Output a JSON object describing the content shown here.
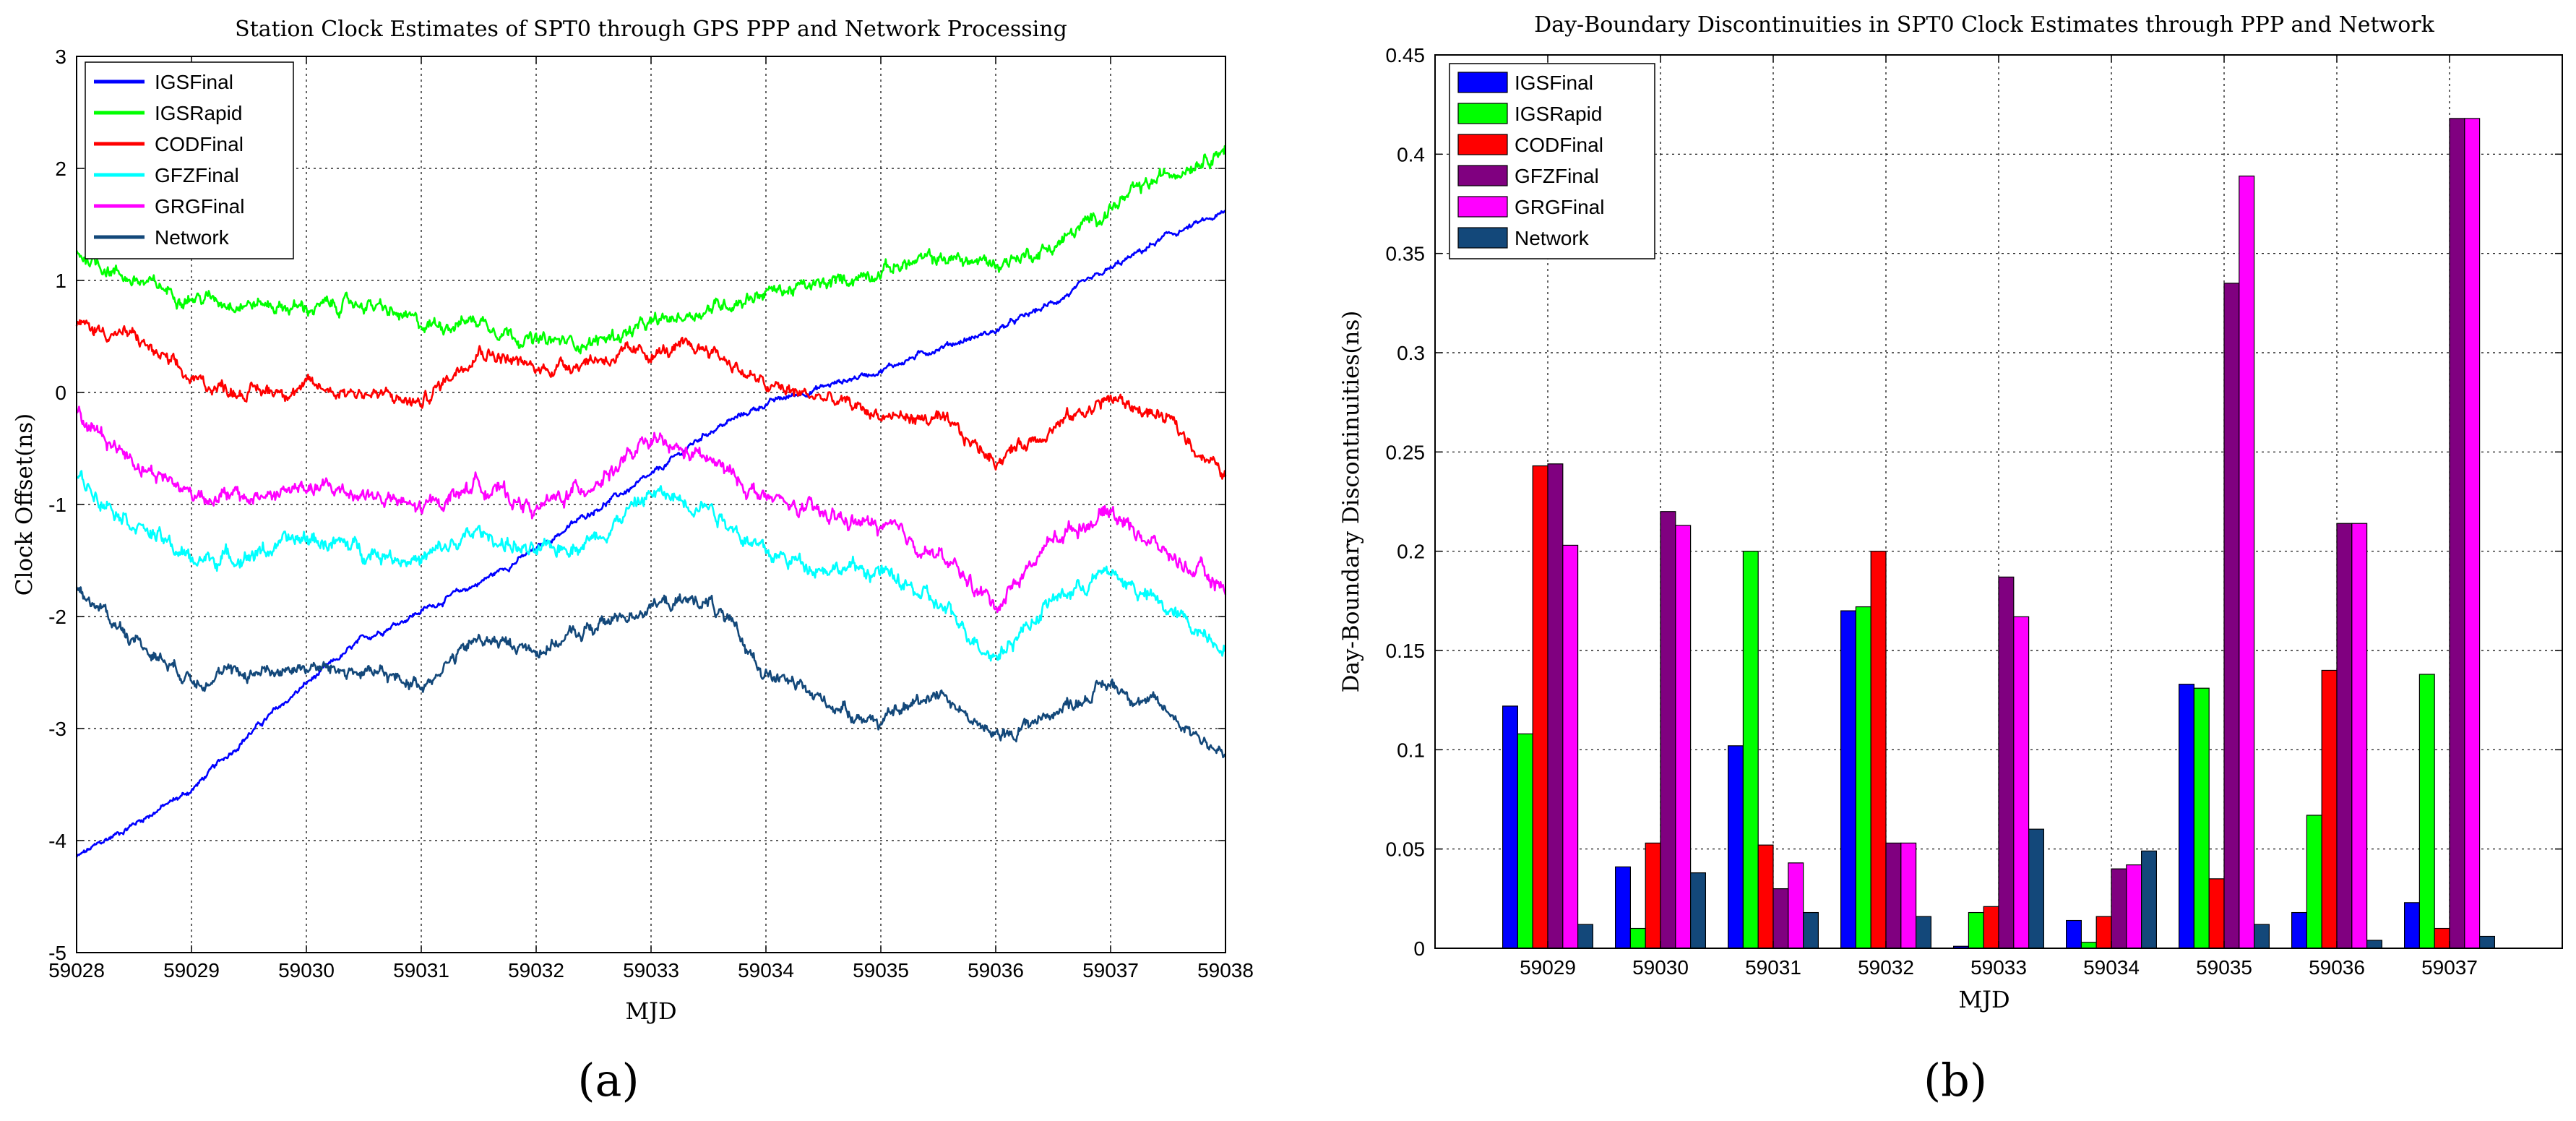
{
  "chart_data": [
    {
      "type": "line",
      "panel_label": "(a)",
      "title": "Station Clock Estimates of SPT0 through GPS PPP and Network Processing",
      "xlabel": "MJD",
      "ylabel": "Clock Offset(ns)",
      "xlim": [
        59028,
        59038
      ],
      "ylim": [
        -5,
        3
      ],
      "xticks": [
        59028,
        59029,
        59030,
        59031,
        59032,
        59033,
        59034,
        59035,
        59036,
        59037,
        59038
      ],
      "yticks": [
        -5,
        -4,
        -3,
        -2,
        -1,
        0,
        1,
        2,
        3
      ],
      "grid": true,
      "legend_position": "top-left",
      "x": [
        59028,
        59028.5,
        59029,
        59029.5,
        59030,
        59030.5,
        59031,
        59031.5,
        59032,
        59032.5,
        59033,
        59033.5,
        59034,
        59034.5,
        59035,
        59035.5,
        59036,
        59036.5,
        59037,
        59037.5,
        59038
      ],
      "series": [
        {
          "name": "IGSFinal",
          "color": "#0000ff",
          "noise": 0.03,
          "values": [
            -4.15,
            -3.85,
            -3.55,
            -3.05,
            -2.6,
            -2.2,
            -1.95,
            -1.7,
            -1.4,
            -1.05,
            -0.75,
            -0.35,
            -0.1,
            0.05,
            0.2,
            0.4,
            0.55,
            0.8,
            1.1,
            1.4,
            1.6
          ]
        },
        {
          "name": "IGSRapid",
          "color": "#00ff00",
          "noise": 0.07,
          "values": [
            1.25,
            1.0,
            0.85,
            0.8,
            0.75,
            0.8,
            0.6,
            0.65,
            0.45,
            0.45,
            0.6,
            0.75,
            0.9,
            0.95,
            1.1,
            1.2,
            1.15,
            1.3,
            1.65,
            1.95,
            2.2
          ]
        },
        {
          "name": "CODFinal",
          "color": "#ff0000",
          "noise": 0.07,
          "values": [
            0.6,
            0.5,
            0.1,
            0.0,
            0.05,
            0.0,
            -0.1,
            0.4,
            0.2,
            0.3,
            0.35,
            0.4,
            0.05,
            -0.05,
            -0.2,
            -0.25,
            -0.6,
            -0.3,
            -0.05,
            -0.25,
            -0.75
          ]
        },
        {
          "name": "GFZFinal",
          "color": "#00ffff",
          "noise": 0.08,
          "values": [
            -0.75,
            -1.15,
            -1.5,
            -1.45,
            -1.3,
            -1.4,
            -1.5,
            -1.25,
            -1.45,
            -1.3,
            -0.9,
            -1.0,
            -1.45,
            -1.55,
            -1.6,
            -1.9,
            -2.35,
            -1.85,
            -1.6,
            -1.95,
            -2.25
          ]
        },
        {
          "name": "GRGFinal",
          "color": "#ff00ff",
          "noise": 0.08,
          "values": [
            -0.2,
            -0.6,
            -0.9,
            -0.95,
            -0.85,
            -0.9,
            -1.05,
            -0.8,
            -1.05,
            -0.8,
            -0.45,
            -0.6,
            -0.95,
            -1.1,
            -1.2,
            -1.45,
            -1.9,
            -1.3,
            -1.05,
            -1.45,
            -1.75
          ]
        },
        {
          "name": "Network",
          "color": "#13487a",
          "noise": 0.07,
          "values": [
            -1.75,
            -2.2,
            -2.55,
            -2.5,
            -2.45,
            -2.5,
            -2.6,
            -2.2,
            -2.3,
            -2.1,
            -1.9,
            -1.85,
            -2.5,
            -2.75,
            -2.95,
            -2.65,
            -3.1,
            -2.85,
            -2.6,
            -2.85,
            -3.25
          ]
        }
      ]
    },
    {
      "type": "bar",
      "panel_label": "(b)",
      "title": "Day-Boundary Discontinuities in SPT0 Clock Estimates through PPP and Network",
      "xlabel": "MJD",
      "ylabel": "Day-Boundary Discontinuities(ns)",
      "ylim": [
        0,
        0.45
      ],
      "yticks": [
        0,
        0.05,
        0.1,
        0.15,
        0.2,
        0.25,
        0.3,
        0.35,
        0.4,
        0.45
      ],
      "categories": [
        "59029",
        "59030",
        "59031",
        "59032",
        "59033",
        "59034",
        "59035",
        "59036",
        "59037"
      ],
      "grid": true,
      "legend_position": "top-left",
      "series": [
        {
          "name": "IGSFinal",
          "color": "#0000ff",
          "values": [
            0.122,
            0.041,
            0.102,
            0.17,
            0.001,
            0.014,
            0.133,
            0.018,
            0.023
          ]
        },
        {
          "name": "IGSRapid",
          "color": "#00ff00",
          "values": [
            0.108,
            0.01,
            0.2,
            0.172,
            0.018,
            0.003,
            0.131,
            0.067,
            0.138
          ]
        },
        {
          "name": "CODFinal",
          "color": "#ff0000",
          "values": [
            0.243,
            0.053,
            0.052,
            0.2,
            0.021,
            0.016,
            0.035,
            0.14,
            0.01
          ]
        },
        {
          "name": "GFZFinal",
          "color": "#800080",
          "values": [
            0.244,
            0.22,
            0.03,
            0.053,
            0.187,
            0.04,
            0.335,
            0.214,
            0.418
          ]
        },
        {
          "name": "GRGFinal",
          "color": "#ff00ff",
          "values": [
            0.203,
            0.213,
            0.043,
            0.053,
            0.167,
            0.042,
            0.389,
            0.214,
            0.418
          ]
        },
        {
          "name": "Network",
          "color": "#13487a",
          "values": [
            0.012,
            0.038,
            0.018,
            0.016,
            0.06,
            0.049,
            0.012,
            0.004,
            0.006
          ]
        }
      ]
    }
  ]
}
